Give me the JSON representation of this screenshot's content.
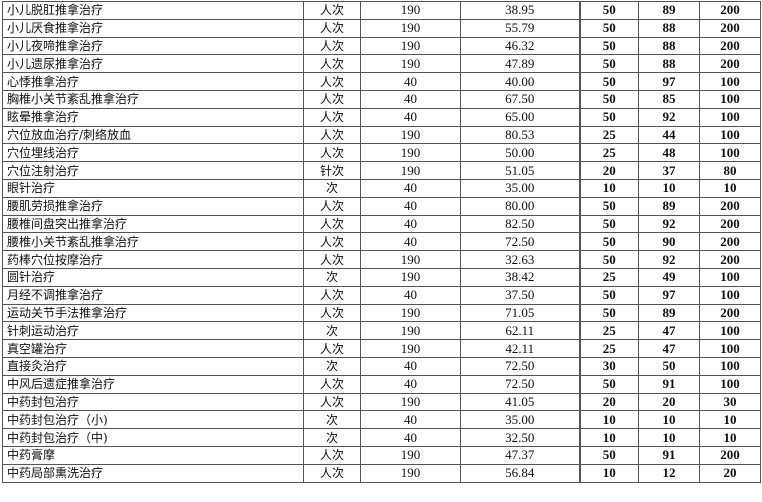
{
  "rows": [
    [
      "小儿脱肛推拿治疗",
      "人次",
      "190",
      "38.95",
      "50",
      "89",
      "200"
    ],
    [
      "小儿厌食推拿治疗",
      "人次",
      "190",
      "55.79",
      "50",
      "88",
      "200"
    ],
    [
      "小儿夜啼推拿治疗",
      "人次",
      "190",
      "46.32",
      "50",
      "88",
      "200"
    ],
    [
      "小儿遗尿推拿治疗",
      "人次",
      "190",
      "47.89",
      "50",
      "88",
      "200"
    ],
    [
      "心悸推拿治疗",
      "人次",
      "40",
      "40.00",
      "50",
      "97",
      "100"
    ],
    [
      "胸椎小关节紊乱推拿治疗",
      "人次",
      "40",
      "67.50",
      "50",
      "85",
      "100"
    ],
    [
      "眩晕推拿治疗",
      "人次",
      "40",
      "65.00",
      "50",
      "92",
      "100"
    ],
    [
      "穴位放血治疗/刺络放血",
      "人次",
      "190",
      "80.53",
      "25",
      "44",
      "100"
    ],
    [
      "穴位埋线治疗",
      "人次",
      "190",
      "50.00",
      "25",
      "48",
      "100"
    ],
    [
      "穴位注射治疗",
      "针次",
      "190",
      "51.05",
      "20",
      "37",
      "80"
    ],
    [
      "眼针治疗",
      "次",
      "40",
      "35.00",
      "10",
      "10",
      "10"
    ],
    [
      "腰肌劳损推拿治疗",
      "人次",
      "40",
      "80.00",
      "50",
      "89",
      "200"
    ],
    [
      "腰椎间盘突出推拿治疗",
      "人次",
      "40",
      "82.50",
      "50",
      "92",
      "200"
    ],
    [
      "腰椎小关节紊乱推拿治疗",
      "人次",
      "40",
      "72.50",
      "50",
      "90",
      "200"
    ],
    [
      "药棒穴位按摩治疗",
      "人次",
      "190",
      "32.63",
      "50",
      "92",
      "200"
    ],
    [
      "圆针治疗",
      "次",
      "190",
      "38.42",
      "25",
      "49",
      "100"
    ],
    [
      "月经不调推拿治疗",
      "人次",
      "40",
      "37.50",
      "50",
      "97",
      "100"
    ],
    [
      "运动关节手法推拿治疗",
      "人次",
      "190",
      "71.05",
      "50",
      "89",
      "200"
    ],
    [
      "针刺运动治疗",
      "次",
      "190",
      "62.11",
      "25",
      "47",
      "100"
    ],
    [
      "真空罐治疗",
      "人次",
      "190",
      "42.11",
      "25",
      "47",
      "100"
    ],
    [
      "直接灸治疗",
      "次",
      "40",
      "72.50",
      "30",
      "50",
      "100"
    ],
    [
      "中风后遗症推拿治疗",
      "人次",
      "40",
      "72.50",
      "50",
      "91",
      "100"
    ],
    [
      "中药封包治疗",
      "人次",
      "190",
      "41.05",
      "20",
      "20",
      "30"
    ],
    [
      "中药封包治疗（小)",
      "次",
      "40",
      "35.00",
      "10",
      "10",
      "10"
    ],
    [
      "中药封包治疗（中)",
      "次",
      "40",
      "32.50",
      "10",
      "10",
      "10"
    ],
    [
      "中药膏摩",
      "人次",
      "190",
      "47.37",
      "50",
      "91",
      "200"
    ],
    [
      "中药局部熏洗治疗",
      "人次",
      "190",
      "56.84",
      "10",
      "12",
      "20"
    ]
  ]
}
